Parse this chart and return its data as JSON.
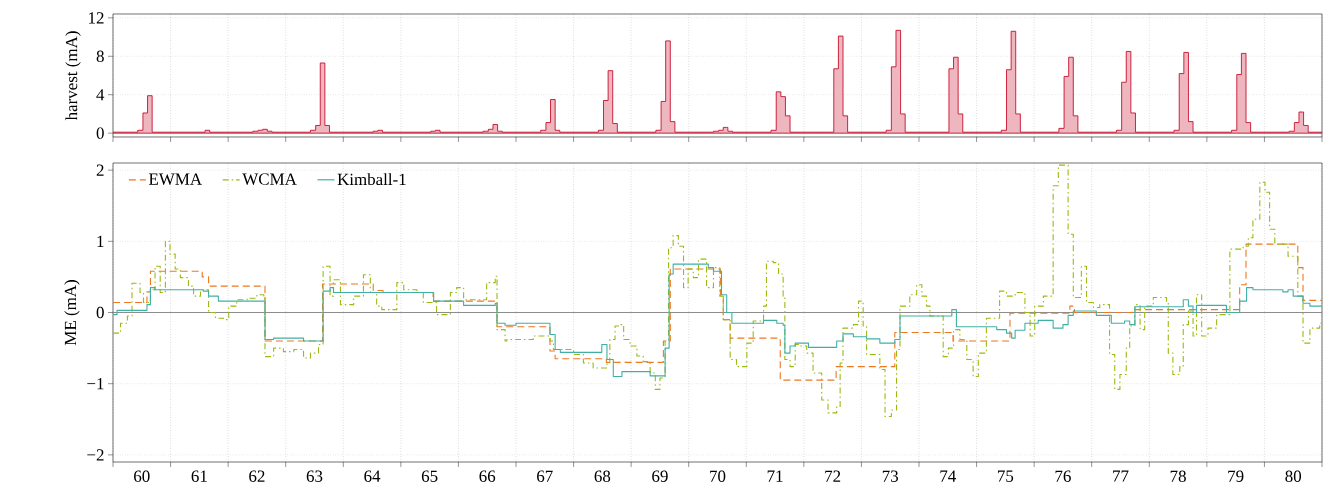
{
  "chart_data": [
    {
      "type": "area",
      "ylabel": "harvest (mA)",
      "xlim": [
        59.5,
        80.5
      ],
      "ylim": [
        -0.4,
        12.4
      ],
      "yticks": [
        0,
        4,
        8,
        12
      ],
      "grid": true,
      "tick_labels": "y",
      "xticks": [
        {
          "value": 59.5,
          "label": null
        },
        60,
        {
          "value": 60.5,
          "label": null
        },
        61,
        {
          "value": 61.5,
          "label": null
        },
        62,
        {
          "value": 62.5,
          "label": null
        },
        63,
        {
          "value": 63.5,
          "label": null
        },
        64,
        {
          "value": 64.5,
          "label": null
        },
        65,
        {
          "value": 65.5,
          "label": null
        },
        66,
        {
          "value": 66.5,
          "label": null
        },
        67,
        {
          "value": 67.5,
          "label": null
        },
        68,
        {
          "value": 68.5,
          "label": null
        },
        69,
        {
          "value": 69.5,
          "label": null
        },
        70,
        {
          "value": 70.5,
          "label": null
        },
        71,
        {
          "value": 71.5,
          "label": null
        },
        72,
        {
          "value": 72.5,
          "label": null
        },
        73,
        {
          "value": 73.5,
          "label": null
        },
        74,
        {
          "value": 74.5,
          "label": null
        },
        75,
        {
          "value": 75.5,
          "label": null
        },
        76,
        {
          "value": 76.5,
          "label": null
        },
        77,
        {
          "value": 77.5,
          "label": null
        },
        78,
        {
          "value": 78.5,
          "label": null
        },
        79,
        {
          "value": 79.5,
          "label": null
        },
        80,
        {
          "value": 80.5,
          "label": null
        }
      ],
      "series": [
        {
          "color": "#c8102e",
          "x": [
            59.5,
            59.93,
            60.02,
            60.1,
            60.18,
            60.26,
            60.93,
            61.02,
            61.1,
            61.18,
            61.26,
            61.93,
            62.02,
            62.1,
            62.18,
            62.26,
            62.93,
            63.02,
            63.1,
            63.18,
            63.26,
            63.93,
            64.02,
            64.1,
            64.18,
            64.26,
            64.93,
            65.02,
            65.1,
            65.18,
            65.26,
            65.93,
            66.02,
            66.1,
            66.18,
            66.26,
            66.93,
            67.02,
            67.1,
            67.18,
            67.26,
            67.93,
            68.02,
            68.1,
            68.18,
            68.26,
            68.93,
            69.02,
            69.1,
            69.18,
            69.26,
            69.93,
            70.02,
            70.1,
            70.18,
            70.26,
            70.93,
            71.02,
            71.1,
            71.18,
            71.26,
            71.93,
            72.02,
            72.1,
            72.18,
            72.26,
            72.93,
            73.02,
            73.1,
            73.18,
            73.26,
            73.93,
            74.02,
            74.1,
            74.18,
            74.26,
            74.93,
            75.02,
            75.1,
            75.18,
            75.26,
            75.93,
            76.02,
            76.1,
            76.18,
            76.26,
            76.93,
            77.02,
            77.1,
            77.18,
            77.26,
            77.93,
            78.02,
            78.1,
            78.18,
            78.26,
            78.93,
            79.02,
            79.1,
            79.18,
            79.26,
            79.93,
            80.02,
            80.1,
            80.18,
            80.26,
            80.5
          ],
          "values": [
            0.1,
            0.3,
            2.1,
            3.9,
            0.1,
            0.1,
            0.1,
            0.1,
            0.3,
            0.1,
            0.1,
            0.2,
            0.3,
            0.4,
            0.2,
            0.1,
            0.3,
            0.8,
            7.3,
            0.8,
            0.1,
            0.1,
            0.2,
            0.3,
            0.1,
            0.1,
            0.1,
            0.2,
            0.3,
            0.1,
            0.1,
            0.2,
            0.4,
            0.9,
            0.2,
            0.1,
            0.3,
            1.1,
            3.5,
            0.3,
            0.1,
            0.3,
            3.4,
            6.5,
            1.0,
            0.1,
            0.3,
            3.3,
            9.6,
            1.2,
            0.1,
            0.2,
            0.3,
            0.6,
            0.2,
            0.1,
            0.3,
            4.3,
            3.8,
            1.8,
            0.1,
            0.1,
            6.7,
            10.1,
            1.8,
            0.1,
            0.3,
            6.9,
            10.7,
            2.0,
            0.1,
            0.1,
            6.7,
            7.9,
            2.0,
            0.1,
            0.3,
            6.6,
            10.6,
            2.0,
            0.1,
            0.5,
            5.9,
            7.9,
            1.8,
            0.1,
            0.3,
            5.3,
            8.5,
            2.1,
            0.1,
            0.3,
            6.2,
            8.4,
            1.2,
            0.1,
            0.3,
            6.1,
            8.3,
            1.1,
            0.1,
            0.2,
            1.1,
            2.2,
            0.8,
            0.1,
            0.1
          ]
        }
      ]
    },
    {
      "type": "step",
      "ylabel": "ME (mA)",
      "xlim": [
        59.5,
        80.5
      ],
      "ylim": [
        -2.1,
        2.1
      ],
      "yticks": [
        {
          "value": -2,
          "label": "−2"
        },
        {
          "value": -1,
          "label": "−1"
        },
        0,
        1,
        2
      ],
      "grid": true,
      "legend": "top left",
      "xticks": [
        {
          "value": 59.5,
          "label": null
        },
        60,
        {
          "value": 60.5,
          "label": null
        },
        61,
        {
          "value": 61.5,
          "label": null
        },
        62,
        {
          "value": 62.5,
          "label": null
        },
        63,
        {
          "value": 63.5,
          "label": null
        },
        64,
        {
          "value": 64.5,
          "label": null
        },
        65,
        {
          "value": 65.5,
          "label": null
        },
        66,
        {
          "value": 66.5,
          "label": null
        },
        67,
        {
          "value": 67.5,
          "label": null
        },
        68,
        {
          "value": 68.5,
          "label": null
        },
        69,
        {
          "value": 69.5,
          "label": null
        },
        70,
        {
          "value": 70.5,
          "label": null
        },
        71,
        {
          "value": 71.5,
          "label": null
        },
        72,
        {
          "value": 72.5,
          "label": null
        },
        73,
        {
          "value": 73.5,
          "label": null
        },
        74,
        {
          "value": 74.5,
          "label": null
        },
        75,
        {
          "value": 75.5,
          "label": null
        },
        76,
        {
          "value": 76.5,
          "label": null
        },
        77,
        {
          "value": 77.5,
          "label": null
        },
        78,
        {
          "value": 78.5,
          "label": null
        },
        79,
        {
          "value": 79.5,
          "label": null
        },
        80,
        {
          "value": 80.5,
          "label": null
        }
      ],
      "ref_lines": [
        {
          "axis": "y",
          "value": 0,
          "color": "#808080"
        }
      ],
      "series": [
        {
          "name": "EWMA",
          "color": "#ee7722",
          "line_style": "dashed",
          "x": [
            59.5,
            60.09,
            60.15,
            61.05,
            61.16,
            62.14,
            63.14,
            64.02,
            64.19,
            65.06,
            66.17,
            67.09,
            67.18,
            68.07,
            69.06,
            69.18,
            70.05,
            70.1,
            70.22,
            71.09,
            72.06,
            73.08,
            74.09,
            75.08,
            76.12,
            76.2,
            77.2,
            79.07,
            79.18,
            80.08,
            80.17,
            80.5
          ],
          "values": [
            0.14,
            0.29,
            0.58,
            0.5,
            0.37,
            -0.4,
            0.4,
            0.31,
            0.28,
            0.16,
            -0.2,
            -0.54,
            -0.65,
            -0.7,
            -0.4,
            0.61,
            0.21,
            -0.1,
            -0.36,
            -0.95,
            -0.76,
            -0.28,
            -0.4,
            -0.01,
            0.09,
            0.0,
            0.04,
            0.39,
            0.96,
            0.63,
            0.17,
            0.17
          ]
        },
        {
          "name": "WCMA",
          "color": "#99bb11",
          "line_style": "dashdot",
          "x": [
            59.5,
            59.63,
            59.75,
            59.83,
            59.97,
            60.03,
            60.15,
            60.23,
            60.32,
            60.41,
            60.49,
            60.58,
            60.67,
            60.81,
            60.9,
            61.02,
            61.16,
            61.28,
            61.42,
            61.51,
            61.65,
            61.83,
            62.0,
            62.12,
            62.14,
            62.29,
            62.46,
            62.64,
            62.81,
            62.93,
            63.07,
            63.15,
            63.27,
            63.33,
            63.45,
            63.68,
            63.85,
            63.97,
            64.08,
            64.17,
            64.43,
            64.55,
            64.78,
            64.89,
            65.12,
            65.36,
            65.47,
            65.59,
            65.82,
            65.99,
            66.14,
            66.17,
            66.31,
            66.34,
            66.8,
            67.09,
            67.15,
            67.5,
            67.67,
            67.84,
            68.08,
            68.13,
            68.22,
            68.28,
            68.37,
            68.48,
            68.6,
            68.71,
            68.83,
            68.92,
            69.0,
            69.09,
            69.15,
            69.23,
            69.32,
            69.41,
            69.49,
            69.58,
            69.67,
            69.81,
            69.93,
            70.04,
            70.1,
            70.22,
            70.33,
            70.51,
            70.62,
            70.8,
            70.85,
            70.97,
            71.06,
            71.14,
            71.17,
            71.26,
            71.35,
            71.43,
            71.55,
            71.66,
            71.81,
            71.92,
            72.07,
            72.13,
            72.18,
            72.36,
            72.45,
            72.53,
            72.59,
            72.82,
            72.91,
            73.02,
            73.11,
            73.17,
            73.34,
            73.46,
            73.55,
            73.63,
            73.69,
            73.92,
            74.01,
            74.1,
            74.21,
            74.33,
            74.44,
            74.53,
            74.67,
            74.9,
            75.02,
            75.17,
            75.34,
            75.43,
            75.51,
            75.66,
            75.83,
            75.92,
            76.09,
            76.18,
            76.32,
            76.41,
            76.53,
            76.64,
            76.81,
            76.9,
            76.99,
            77.1,
            77.16,
            77.25,
            77.34,
            77.42,
            77.57,
            77.8,
            77.83,
            77.91,
            78.03,
            78.09,
            78.18,
            78.26,
            78.32,
            78.41,
            78.52,
            78.67,
            78.9,
            79.13,
            79.22,
            79.3,
            79.42,
            79.51,
            79.59,
            79.68,
            79.91,
            80.08,
            80.17,
            80.29,
            80.46,
            80.5
          ],
          "values": [
            -0.29,
            -0.15,
            -0.05,
            0.41,
            0.28,
            0.14,
            0.32,
            0.65,
            0.28,
            1.0,
            0.82,
            0.61,
            0.49,
            0.37,
            0.23,
            0.32,
            0.0,
            -0.08,
            -0.1,
            0.09,
            0.18,
            0.2,
            0.25,
            0.2,
            -0.62,
            -0.5,
            -0.55,
            -0.52,
            -0.64,
            -0.57,
            -0.45,
            0.65,
            0.23,
            0.46,
            0.11,
            0.23,
            0.53,
            0.28,
            0.09,
            0.04,
            0.42,
            0.32,
            0.28,
            0.14,
            -0.03,
            0.28,
            0.35,
            0.18,
            0.18,
            0.42,
            0.51,
            -0.24,
            -0.4,
            -0.38,
            -0.33,
            -0.4,
            -0.52,
            -0.59,
            -0.71,
            -0.78,
            -0.71,
            -0.38,
            -0.19,
            -0.17,
            -0.38,
            -0.47,
            -0.61,
            -0.69,
            -0.85,
            -1.08,
            -0.92,
            -0.4,
            0.91,
            1.08,
            0.93,
            0.35,
            0.61,
            0.49,
            0.75,
            0.35,
            0.63,
            0.23,
            -0.1,
            -0.66,
            -0.76,
            -0.43,
            -0.12,
            0.09,
            0.72,
            0.7,
            0.54,
            0.23,
            -0.66,
            -0.76,
            -0.45,
            -0.47,
            -0.57,
            -0.85,
            -1.23,
            -1.41,
            -1.32,
            -0.71,
            -0.22,
            -0.17,
            0.16,
            -0.19,
            -0.59,
            -0.8,
            -1.46,
            -1.37,
            -0.52,
            0.09,
            0.25,
            0.39,
            0.23,
            0.09,
            -0.05,
            -0.62,
            -0.5,
            -0.24,
            -0.38,
            -0.66,
            -0.9,
            -0.57,
            -0.08,
            0.3,
            0.23,
            0.28,
            0.0,
            -0.33,
            0.09,
            0.23,
            1.78,
            2.07,
            1.1,
            0.21,
            0.65,
            0.14,
            0.07,
            0.11,
            -0.59,
            -1.08,
            -0.87,
            -0.5,
            -0.19,
            0.11,
            -0.24,
            0.09,
            0.21,
            0.14,
            -0.57,
            -0.87,
            -0.76,
            -0.17,
            0.02,
            -0.33,
            0.25,
            -0.33,
            -0.22,
            -0.03,
            0.89,
            0.93,
            1.05,
            1.31,
            1.83,
            1.69,
            1.17,
            0.96,
            0.79,
            0.23,
            -0.43,
            -0.22,
            -0.15,
            -0.15
          ]
        },
        {
          "name": "Kimball-1",
          "color": "#40b0a6",
          "line_style": "solid",
          "x": [
            59.5,
            59.57,
            60.09,
            60.15,
            60.23,
            61.07,
            61.16,
            61.33,
            62.14,
            62.29,
            62.81,
            63.15,
            63.27,
            63.33,
            65.07,
            65.59,
            66.14,
            66.17,
            66.31,
            66.5,
            67.09,
            67.18,
            67.27,
            67.99,
            68.08,
            68.19,
            68.34,
            68.83,
            69.09,
            69.16,
            69.23,
            69.84,
            69.93,
            70.07,
            70.16,
            70.25,
            70.8,
            71.03,
            71.14,
            71.17,
            71.26,
            71.35,
            71.58,
            72.07,
            72.18,
            72.36,
            72.59,
            72.82,
            73.08,
            73.17,
            74.07,
            74.15,
            74.85,
            75.02,
            75.11,
            75.17,
            75.34,
            75.57,
            75.83,
            76.0,
            76.09,
            76.18,
            76.58,
            76.84,
            77.07,
            77.16,
            77.25,
            78.09,
            78.18,
            78.26,
            78.32,
            78.84,
            79.07,
            79.19,
            79.3,
            79.82,
            79.91,
            80.0,
            80.17,
            80.29,
            80.5
          ],
          "values": [
            -0.03,
            0.03,
            0.11,
            0.35,
            0.32,
            0.3,
            0.23,
            0.16,
            -0.38,
            -0.36,
            -0.4,
            0.3,
            0.35,
            0.28,
            0.16,
            0.1,
            0.13,
            -0.15,
            -0.18,
            -0.15,
            -0.31,
            -0.52,
            -0.56,
            -0.45,
            -0.66,
            -0.9,
            -0.83,
            -0.89,
            -0.5,
            0.54,
            0.68,
            0.63,
            0.58,
            0.25,
            0.0,
            -0.15,
            -0.11,
            -0.15,
            -0.18,
            -0.57,
            -0.47,
            -0.43,
            -0.49,
            -0.4,
            -0.3,
            -0.34,
            -0.37,
            -0.43,
            -0.38,
            -0.05,
            0.04,
            -0.2,
            -0.24,
            -0.29,
            -0.36,
            -0.25,
            -0.15,
            -0.11,
            -0.22,
            -0.17,
            -0.04,
            0.02,
            -0.04,
            -0.15,
            -0.12,
            -0.17,
            0.08,
            0.18,
            0.09,
            0.0,
            0.1,
            0.0,
            0.16,
            0.35,
            0.32,
            0.29,
            0.32,
            0.23,
            0.13,
            0.09,
            0.09
          ]
        }
      ]
    }
  ]
}
